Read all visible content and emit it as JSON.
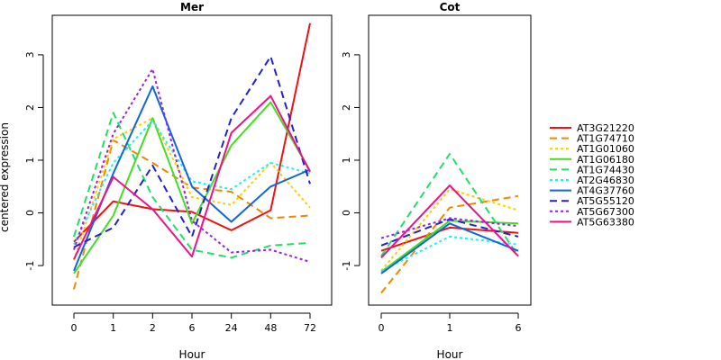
{
  "chart_data": {
    "type": "line",
    "ylabel": "centered expression",
    "xlabel": "Hour",
    "ylim": [
      -1.75,
      3.75
    ],
    "yticks": [
      -1,
      0,
      1,
      2,
      3
    ],
    "yticks_labels": [
      "-1",
      "0",
      "1",
      "2",
      "3"
    ],
    "legend_position": "right",
    "panels": [
      {
        "title": "Mer",
        "x": [
          "0",
          "1",
          "2",
          "6",
          "24",
          "48",
          "72"
        ],
        "series": [
          {
            "name": "AT3G21220",
            "color": "#ee1111",
            "dash": "solid",
            "values": [
              -0.55,
              0.22,
              0.07,
              0.02,
              -0.33,
              0.05,
              3.6
            ]
          },
          {
            "name": "AT1G74710",
            "color": "#ee8800",
            "dash": "dashed",
            "values": [
              -1.45,
              1.38,
              0.95,
              0.48,
              0.4,
              -0.1,
              -0.05
            ]
          },
          {
            "name": "AT1G01060",
            "color": "#ffcc00",
            "dash": "dotted",
            "values": [
              -0.9,
              1.4,
              1.8,
              0.3,
              0.15,
              0.95,
              0.1
            ]
          },
          {
            "name": "AT1G06180",
            "color": "#44dd22",
            "dash": "solid",
            "values": [
              -1.15,
              -0.05,
              1.8,
              -0.2,
              1.28,
              2.1,
              0.8
            ]
          },
          {
            "name": "AT1G74430",
            "color": "#22dd66",
            "dash": "dashed",
            "values": [
              -0.45,
              1.9,
              0.3,
              -0.7,
              -0.85,
              -0.62,
              -0.57
            ]
          },
          {
            "name": "AT2G46830",
            "color": "#22eeee",
            "dash": "dotted",
            "values": [
              -0.6,
              0.95,
              1.75,
              0.6,
              0.45,
              0.95,
              0.75
            ]
          },
          {
            "name": "AT4G37760",
            "color": "#1166dd",
            "dash": "solid",
            "values": [
              -1.1,
              0.75,
              2.4,
              0.5,
              -0.17,
              0.5,
              0.82
            ]
          },
          {
            "name": "AT5G55120",
            "color": "#2222cc",
            "dash": "dashed",
            "values": [
              -0.65,
              -0.28,
              0.9,
              -0.45,
              1.8,
              2.97,
              0.55
            ]
          },
          {
            "name": "AT5G67300",
            "color": "#9922dd",
            "dash": "dotted",
            "values": [
              -0.7,
              1.5,
              2.73,
              -0.15,
              -0.75,
              -0.7,
              -0.93
            ]
          },
          {
            "name": "AT5G63380",
            "color": "#ee1188",
            "dash": "solid",
            "values": [
              -0.88,
              0.68,
              0.07,
              -0.83,
              1.52,
              2.22,
              0.78
            ]
          }
        ]
      },
      {
        "title": "Cot",
        "x": [
          "0",
          "1",
          "6"
        ],
        "series": [
          {
            "name": "AT3G21220",
            "color": "#ee1111",
            "dash": "solid",
            "values": [
              -0.72,
              -0.28,
              -0.38
            ]
          },
          {
            "name": "AT1G74710",
            "color": "#ee8800",
            "dash": "dashed",
            "values": [
              -1.52,
              0.1,
              0.32
            ]
          },
          {
            "name": "AT1G01060",
            "color": "#ffcc00",
            "dash": "dotted",
            "values": [
              -1.1,
              0.45,
              0.05
            ]
          },
          {
            "name": "AT1G06180",
            "color": "#44dd22",
            "dash": "solid",
            "values": [
              -1.12,
              -0.15,
              -0.2
            ]
          },
          {
            "name": "AT1G74430",
            "color": "#22dd66",
            "dash": "dashed",
            "values": [
              -0.82,
              1.12,
              -0.82
            ]
          },
          {
            "name": "AT2G46830",
            "color": "#22eeee",
            "dash": "dotted",
            "values": [
              -1.1,
              -0.45,
              -0.6
            ]
          },
          {
            "name": "AT4G37760",
            "color": "#1166dd",
            "dash": "solid",
            "values": [
              -1.15,
              -0.2,
              -0.72
            ]
          },
          {
            "name": "AT5G55120",
            "color": "#2222cc",
            "dash": "dashed",
            "values": [
              -0.62,
              -0.12,
              -0.45
            ]
          },
          {
            "name": "AT5G67300",
            "color": "#9922dd",
            "dash": "dotted",
            "values": [
              -0.48,
              -0.1,
              -0.25
            ]
          },
          {
            "name": "AT5G63380",
            "color": "#ee1188",
            "dash": "solid",
            "values": [
              -0.85,
              0.52,
              -0.82
            ]
          }
        ]
      }
    ]
  }
}
